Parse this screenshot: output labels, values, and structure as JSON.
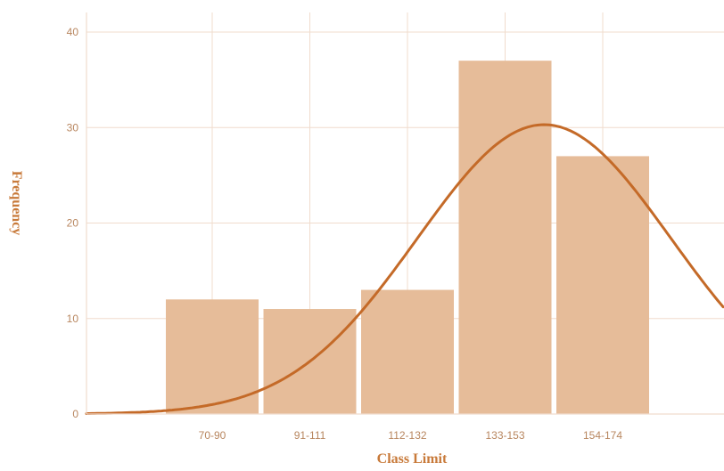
{
  "chart_data": {
    "type": "bar",
    "subtype": "histogram-with-normal-curve",
    "title": "",
    "xlabel": "Class Limit",
    "ylabel": "Frequency",
    "categories": [
      "70-90",
      "91-111",
      "112-132",
      "133-153",
      "154-174"
    ],
    "values": [
      12,
      11,
      13,
      37,
      27
    ],
    "ylim": [
      0,
      42
    ],
    "yticks": [
      0,
      10,
      20,
      30,
      40
    ],
    "grid": true,
    "legend": "none",
    "normal_curve": {
      "peak": 30.3,
      "peak_at_class_index": 3.4,
      "sd_in_classes": 1.3
    },
    "colors": {
      "bar": "#e6bc99",
      "curve": "#c46a28",
      "grid": "#f0dccd",
      "tick_text": "#b8865f",
      "axis_title": "#c87a3a"
    }
  }
}
